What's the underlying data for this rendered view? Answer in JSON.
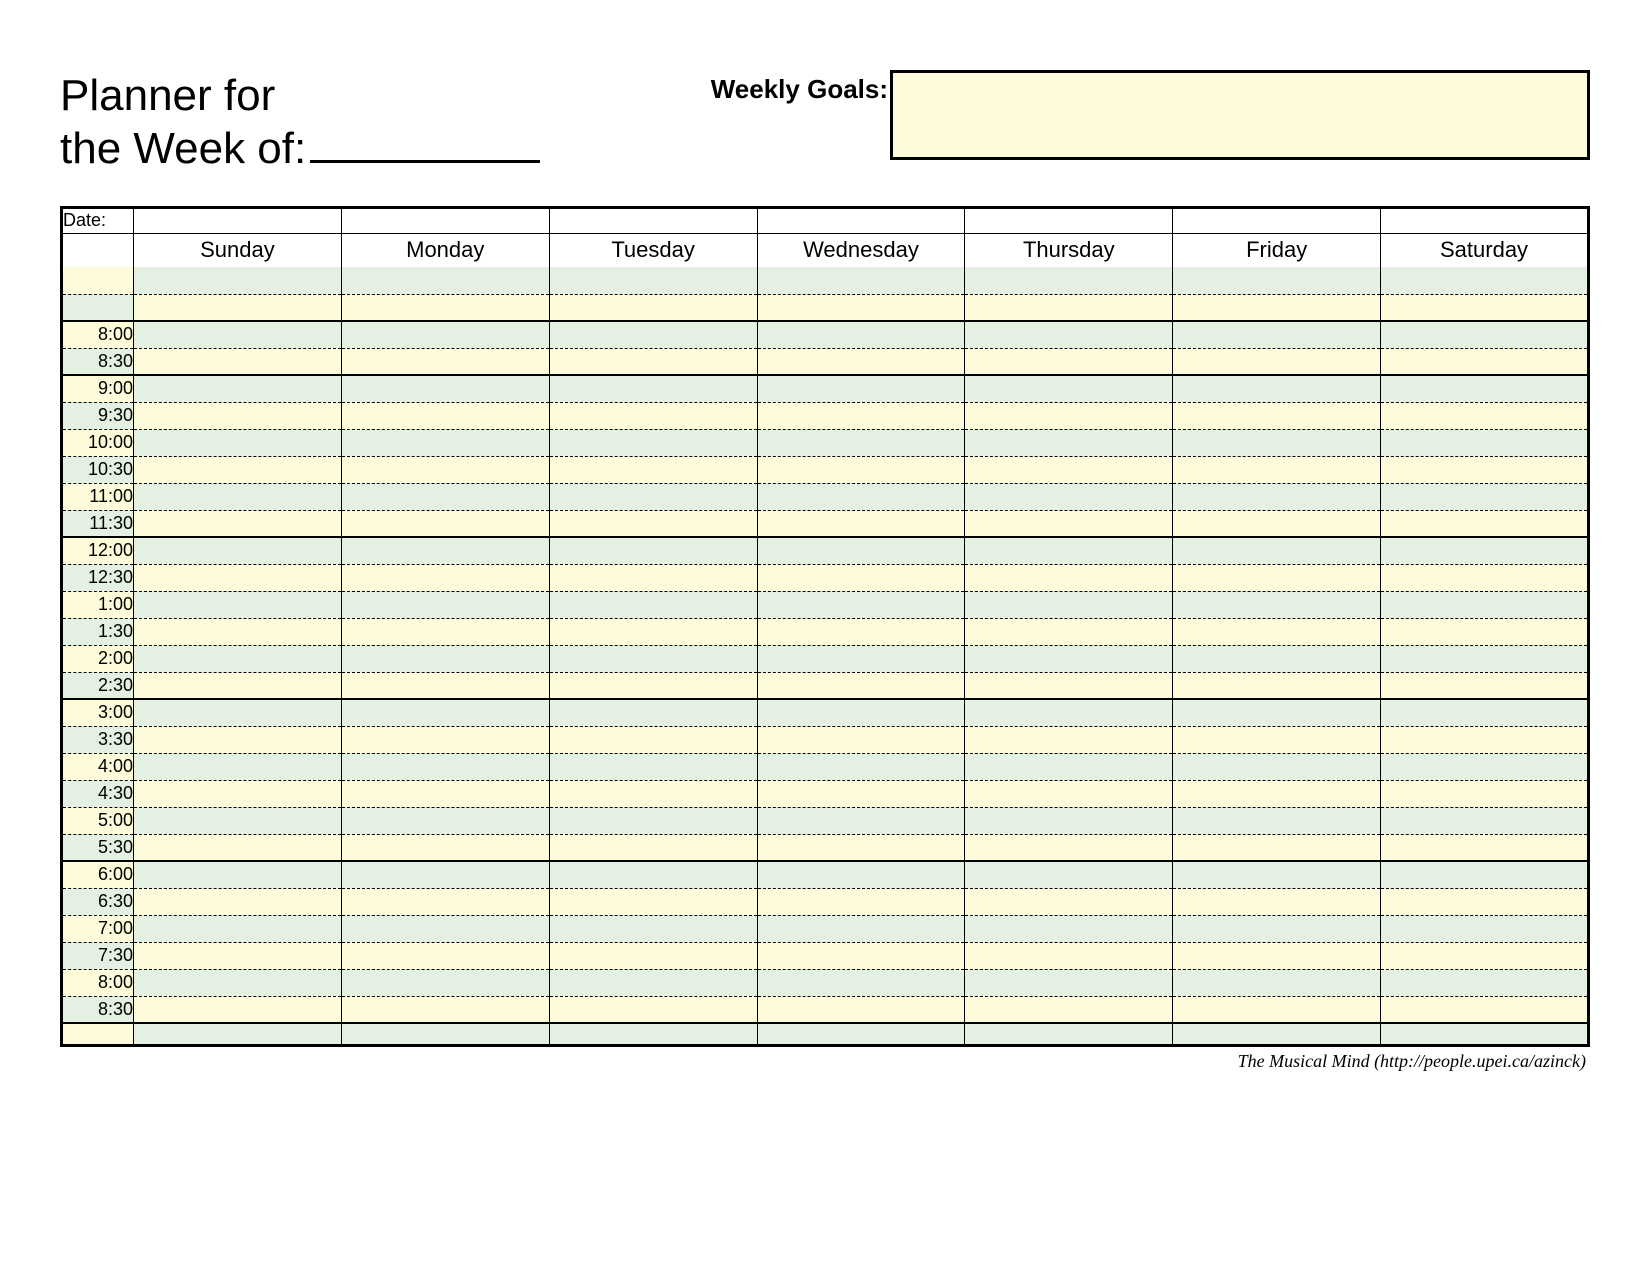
{
  "title_line1": "Planner for",
  "title_line2": "the Week of:",
  "goals_label": "Weekly Goals:",
  "date_label": "Date:",
  "days": [
    "Sunday",
    "Monday",
    "Tuesday",
    "Wednesday",
    "Thursday",
    "Friday",
    "Saturday"
  ],
  "pre_rows": [
    "",
    ""
  ],
  "time_blocks": [
    [
      "8:00",
      "8:30"
    ],
    [
      "9:00",
      "9:30",
      "10:00",
      "10:30",
      "11:00",
      "11:30"
    ],
    [
      "12:00",
      "12:30",
      "1:00",
      "1:30",
      "2:00",
      "2:30"
    ],
    [
      "3:00",
      "3:30",
      "4:00",
      "4:30",
      "5:00",
      "5:30"
    ],
    [
      "6:00",
      "6:30",
      "7:00",
      "7:30",
      "8:00",
      "8:30"
    ]
  ],
  "colors": {
    "green": "#e4f0e1",
    "yellow": "#fdfbd9",
    "white": "#ffffff"
  },
  "footer": "The Musical Mind   (http://people.upei.ca/azinck)"
}
